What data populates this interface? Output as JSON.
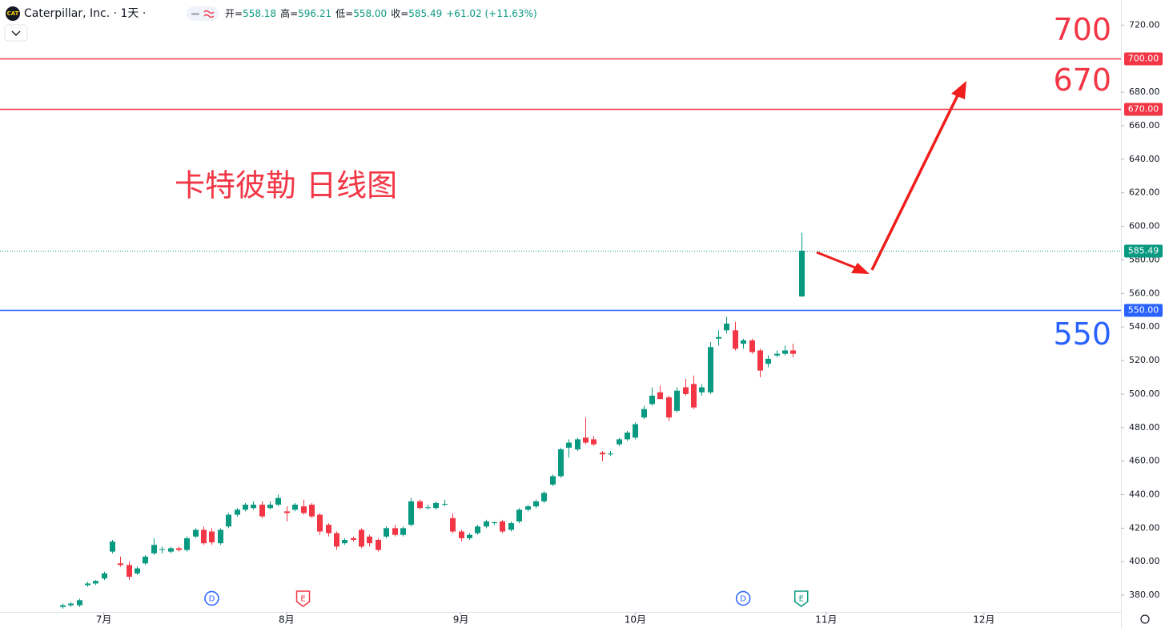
{
  "chart_data": {
    "type": "candlestick",
    "title": "Caterpillar, Inc. · 1天 ·",
    "ohlc_header": [
      {
        "label": "开=",
        "value": "558.18"
      },
      {
        "label": "高=",
        "value": "596.21"
      },
      {
        "label": "低=",
        "value": "558.00"
      },
      {
        "label": "收=",
        "value": "585.49"
      }
    ],
    "change": "+61.02 (+11.63%)",
    "annotation": "卡特彼勒 日线图",
    "up_color": "#089981",
    "down_color": "#f23645",
    "open": [
      373,
      374,
      374,
      386,
      387,
      390,
      406,
      399,
      398,
      393,
      399,
      405,
      407,
      406,
      408,
      407,
      415,
      419,
      418,
      411,
      421,
      428,
      431,
      432,
      434,
      432,
      434,
      430,
      431,
      433,
      434,
      428,
      422,
      417,
      411,
      414,
      419,
      415,
      413,
      415,
      420,
      416,
      422,
      436,
      432,
      432,
      434,
      426,
      418,
      414,
      417,
      421,
      423,
      424,
      419,
      424,
      431,
      433,
      436,
      446,
      451,
      468,
      467,
      474,
      473,
      465,
      464,
      470,
      473,
      474,
      486,
      494,
      501,
      498,
      490,
      504,
      506,
      501,
      501,
      533,
      538,
      538,
      530,
      532,
      526,
      518,
      523,
      524,
      526,
      558.18
    ],
    "high": [
      375,
      376,
      378,
      388,
      389,
      394,
      413,
      403,
      400,
      397,
      404,
      414,
      409,
      409,
      409,
      415,
      420,
      421,
      420,
      420,
      429,
      432,
      435,
      436,
      436,
      436,
      440,
      433,
      435,
      437,
      435,
      429,
      423,
      418,
      414,
      415,
      420,
      416,
      414,
      421,
      422,
      421,
      438,
      437,
      434,
      436,
      437,
      429,
      419,
      417,
      422,
      425,
      424,
      425,
      424,
      432,
      434,
      437,
      442,
      452,
      468,
      473,
      474,
      486,
      475,
      466,
      466,
      474,
      478,
      483,
      493,
      504,
      505,
      499,
      504,
      509,
      511,
      506,
      531,
      538,
      546,
      543,
      533,
      533,
      527,
      523,
      526,
      529,
      530,
      596.21
    ],
    "low": [
      372,
      373,
      373,
      385,
      386,
      389,
      405,
      397,
      389,
      392,
      398,
      404,
      405,
      405,
      406,
      406,
      414,
      410,
      410,
      410,
      420,
      427,
      430,
      431,
      426,
      431,
      433,
      424,
      430,
      428,
      426,
      416,
      415,
      407,
      410,
      412,
      408,
      409,
      406,
      414,
      415,
      415,
      421,
      431,
      431,
      431,
      433,
      417,
      412,
      413,
      416,
      420,
      422,
      417,
      418,
      423,
      430,
      432,
      435,
      445,
      450,
      462,
      466,
      470,
      469,
      460,
      463,
      469,
      472,
      473,
      485,
      493,
      497,
      484,
      489,
      499,
      491,
      499,
      500,
      529,
      536,
      526,
      527,
      524,
      510,
      516,
      522,
      523,
      522,
      558.0
    ],
    "close": [
      374,
      375,
      377,
      387,
      388.5,
      393,
      412,
      398,
      391,
      396,
      403,
      410,
      407.5,
      408,
      407,
      414,
      419,
      411,
      411.5,
      419,
      428,
      431,
      434,
      434,
      427,
      434,
      438,
      429,
      434,
      429,
      427,
      418,
      417,
      409,
      413,
      413,
      409,
      411,
      407,
      420,
      416,
      420,
      436,
      432,
      432.5,
      435,
      434.5,
      418,
      414,
      416,
      421,
      424,
      423.5,
      418,
      423,
      431,
      433,
      436,
      441,
      451,
      467,
      471,
      473,
      471,
      470,
      464,
      464.5,
      473,
      477,
      482,
      491,
      499,
      497,
      486,
      502,
      500,
      492,
      504,
      528,
      534,
      542,
      527,
      532,
      525,
      514,
      521,
      524,
      526,
      524,
      585.49
    ],
    "xlim": [
      -7.5,
      127.5
    ],
    "xticks": [
      {
        "value": 5,
        "label": "7月"
      },
      {
        "value": 27,
        "label": "8月"
      },
      {
        "value": 48,
        "label": "9月"
      },
      {
        "value": 69,
        "label": "10月"
      },
      {
        "value": 92,
        "label": "11月"
      },
      {
        "value": 111,
        "label": "12月"
      }
    ],
    "ylim": [
      370,
      735
    ],
    "yticks": [
      {
        "value": 720,
        "label": "720.00"
      },
      {
        "value": 680,
        "label": "680.00"
      },
      {
        "value": 660,
        "label": "660.00"
      },
      {
        "value": 640,
        "label": "640.00"
      },
      {
        "value": 620,
        "label": "620.00"
      },
      {
        "value": 600,
        "label": "600.00"
      },
      {
        "value": 580,
        "label": "580.00"
      },
      {
        "value": 560,
        "label": "560.00"
      },
      {
        "value": 540,
        "label": "540.00"
      },
      {
        "value": 520,
        "label": "520.00"
      },
      {
        "value": 500,
        "label": "500.00"
      },
      {
        "value": 480,
        "label": "480.00"
      },
      {
        "value": 460,
        "label": "460.00"
      },
      {
        "value": 440,
        "label": "440.00"
      },
      {
        "value": 420,
        "label": "420.00"
      },
      {
        "value": 400,
        "label": "400.00"
      },
      {
        "value": 380,
        "label": "380.00"
      }
    ],
    "hlines": [
      {
        "value": 700,
        "label": "700.00",
        "color": "#f23645",
        "side": "above"
      },
      {
        "value": 670,
        "label": "670.00",
        "color": "#f23645",
        "side": "above"
      },
      {
        "value": 550,
        "label": "550.00",
        "color": "#2962ff",
        "side": "below"
      }
    ],
    "last_price": {
      "value": 585.49,
      "color": "#089981"
    },
    "events": [
      {
        "label": "D",
        "index": 18,
        "color": "#2962ff"
      },
      {
        "label": "E",
        "index": 29,
        "color": "#f23645"
      },
      {
        "label": "D",
        "index": 82,
        "color": "#2962ff"
      },
      {
        "label": "E",
        "index": 89,
        "color": "#089981"
      }
    ]
  }
}
